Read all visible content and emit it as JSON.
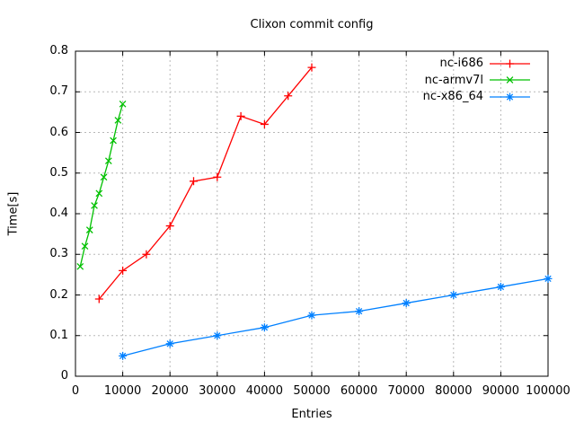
{
  "chart_data": {
    "type": "line",
    "title": "Clixon commit config",
    "xlabel": "Entries",
    "ylabel": "Time[s]",
    "xlim": [
      0,
      100000
    ],
    "ylim": [
      0,
      0.8
    ],
    "grid": true,
    "legend_position": "top-right-inside",
    "background_color": "#ffffff",
    "axis_color": "#000000",
    "grid_color": "#b8b8b8",
    "xticks": {
      "values": [
        0,
        10000,
        20000,
        30000,
        40000,
        50000,
        60000,
        70000,
        80000,
        90000,
        100000
      ],
      "labels": [
        "0",
        "10000",
        "20000",
        "30000",
        "40000",
        "50000",
        "60000",
        "70000",
        "80000",
        "90000",
        "100000"
      ]
    },
    "yticks": {
      "values": [
        0,
        0.1,
        0.2,
        0.3,
        0.4,
        0.5,
        0.6,
        0.7,
        0.8
      ],
      "labels": [
        "0",
        "0.1",
        "0.2",
        "0.3",
        "0.4",
        "0.5",
        "0.6",
        "0.7",
        "0.8"
      ]
    },
    "series": [
      {
        "name": "nc-i686",
        "color": "#ff0000",
        "marker": "plus",
        "x": [
          5000,
          10000,
          15000,
          20000,
          25000,
          30000,
          35000,
          40000,
          45000,
          50000
        ],
        "y": [
          0.19,
          0.26,
          0.3,
          0.37,
          0.48,
          0.49,
          0.64,
          0.62,
          0.69,
          0.76
        ]
      },
      {
        "name": "nc-armv7l",
        "color": "#00c000",
        "marker": "cross",
        "x": [
          1000,
          2000,
          3000,
          4000,
          5000,
          6000,
          7000,
          8000,
          9000,
          10000
        ],
        "y": [
          0.27,
          0.32,
          0.36,
          0.42,
          0.45,
          0.49,
          0.53,
          0.58,
          0.63,
          0.67
        ]
      },
      {
        "name": "nc-x86_64",
        "color": "#0080ff",
        "marker": "asterisk",
        "x": [
          10000,
          20000,
          30000,
          40000,
          50000,
          60000,
          70000,
          80000,
          90000,
          100000
        ],
        "y": [
          0.05,
          0.08,
          0.1,
          0.12,
          0.15,
          0.16,
          0.18,
          0.2,
          0.22,
          0.24
        ]
      }
    ]
  }
}
